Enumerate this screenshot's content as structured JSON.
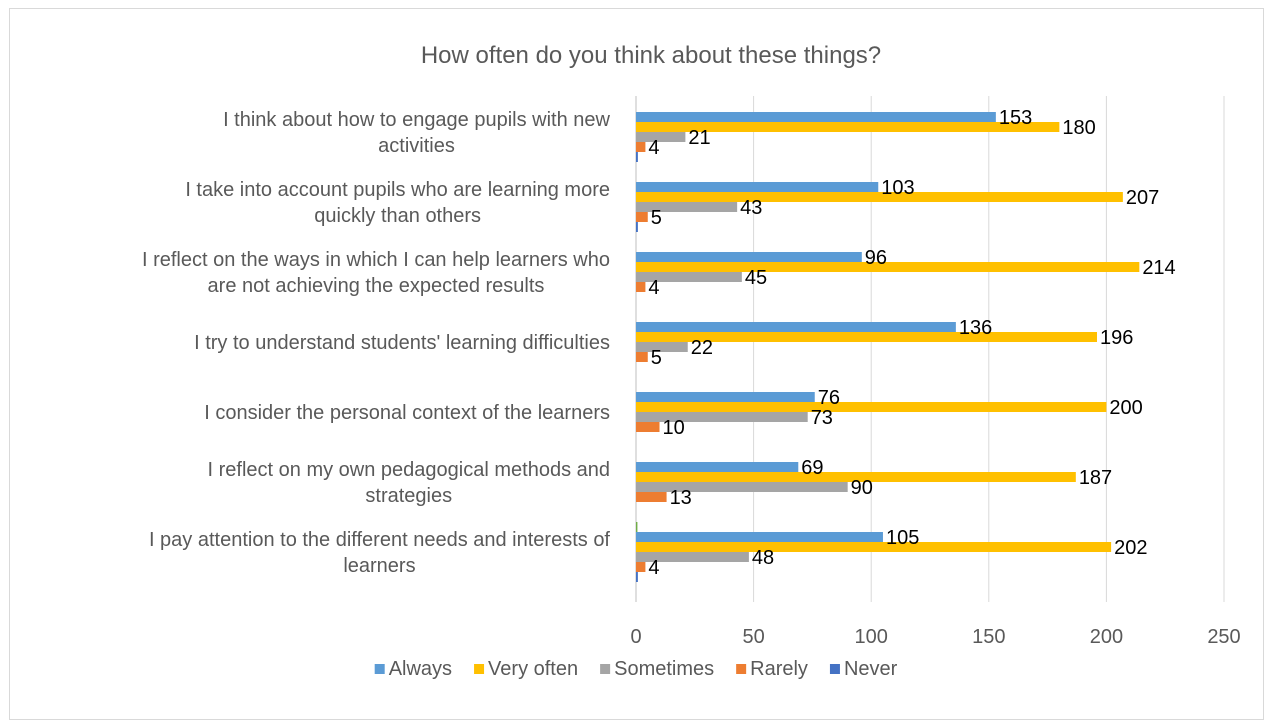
{
  "chart_data": {
    "type": "bar",
    "orientation": "horizontal",
    "title": "How often do you think about these things?",
    "xlabel": "",
    "ylabel": "",
    "xlim": [
      0,
      250
    ],
    "x_ticks": [
      0,
      50,
      100,
      150,
      200,
      250
    ],
    "grid": "vertical",
    "legend_position": "bottom",
    "categories": [
      [
        "I think about how to engage pupils with new",
        "activities"
      ],
      [
        "I take into account pupils who are learning more",
        "quickly than others"
      ],
      [
        "I reflect on the ways in which I can help learners who",
        "are not achieving the expected results"
      ],
      [
        "I try to understand students' learning difficulties"
      ],
      [
        "I consider the personal context of the learners"
      ],
      [
        "I reflect on my own pedagogical methods and",
        "strategies"
      ],
      [
        "I pay attention to the different needs and interests of",
        "learners"
      ]
    ],
    "series": [
      {
        "name": "Always",
        "color": "#5b9bd5",
        "values": [
          153,
          103,
          96,
          136,
          76,
          69,
          105
        ],
        "labels": [
          "153",
          "103",
          "96",
          "136",
          "76",
          "69",
          "105"
        ]
      },
      {
        "name": "Very often",
        "color": "#ffc000",
        "values": [
          180,
          207,
          214,
          196,
          200,
          187,
          202
        ],
        "labels": [
          "180",
          "207",
          "214",
          "196",
          "200",
          "187",
          "202"
        ]
      },
      {
        "name": "Sometimes",
        "color": "#a5a5a5",
        "values": [
          21,
          43,
          45,
          22,
          73,
          90,
          48
        ],
        "labels": [
          "21",
          "43",
          "45",
          "22",
          "73",
          "90",
          "48"
        ]
      },
      {
        "name": "Rarely",
        "color": "#ed7d31",
        "values": [
          4,
          5,
          4,
          5,
          10,
          13,
          4
        ],
        "labels": [
          "4",
          "5",
          "4",
          "5",
          "10",
          "13",
          "4"
        ]
      },
      {
        "name": "Never",
        "color": "#4472c4",
        "values": [
          0.8,
          0.8,
          0,
          0,
          0,
          0,
          0.8
        ],
        "labels": [
          "",
          "",
          "",
          "",
          "",
          "",
          ""
        ]
      }
    ],
    "extra_marks": [
      {
        "category_index": 6,
        "color": "#70ad47",
        "value": 0.6,
        "position": "above"
      }
    ]
  }
}
